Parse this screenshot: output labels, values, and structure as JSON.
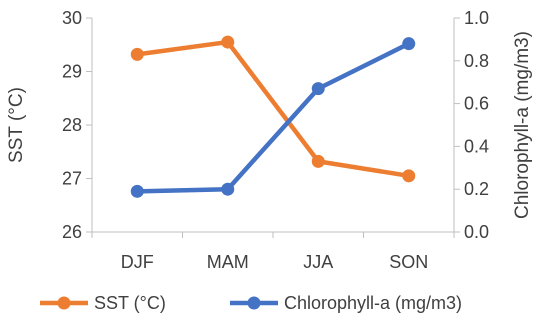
{
  "chart_data": {
    "type": "line",
    "categories": [
      "DJF",
      "MAM",
      "JJA",
      "SON"
    ],
    "series": [
      {
        "name": "SST (°C)",
        "axis": "left",
        "color": "#ED7D31",
        "values": [
          29.32,
          29.55,
          27.32,
          27.05
        ]
      },
      {
        "name": "Chlorophyll-a (mg/m3)",
        "axis": "right",
        "color": "#4472C4",
        "values": [
          0.19,
          0.2,
          0.67,
          0.88
        ]
      }
    ],
    "ylabel_left": "SST (°C)",
    "ylabel_right": "Chlorophyll-a (mg/m3)",
    "ylim_left": [
      26,
      30
    ],
    "ylim_right": [
      0,
      1
    ],
    "yticks_left": [
      "26",
      "27",
      "28",
      "29",
      "30"
    ],
    "yticks_right": [
      "0.0",
      "0.2",
      "0.4",
      "0.6",
      "0.8",
      "1.0"
    ],
    "grid": false,
    "legend": "bottom"
  }
}
